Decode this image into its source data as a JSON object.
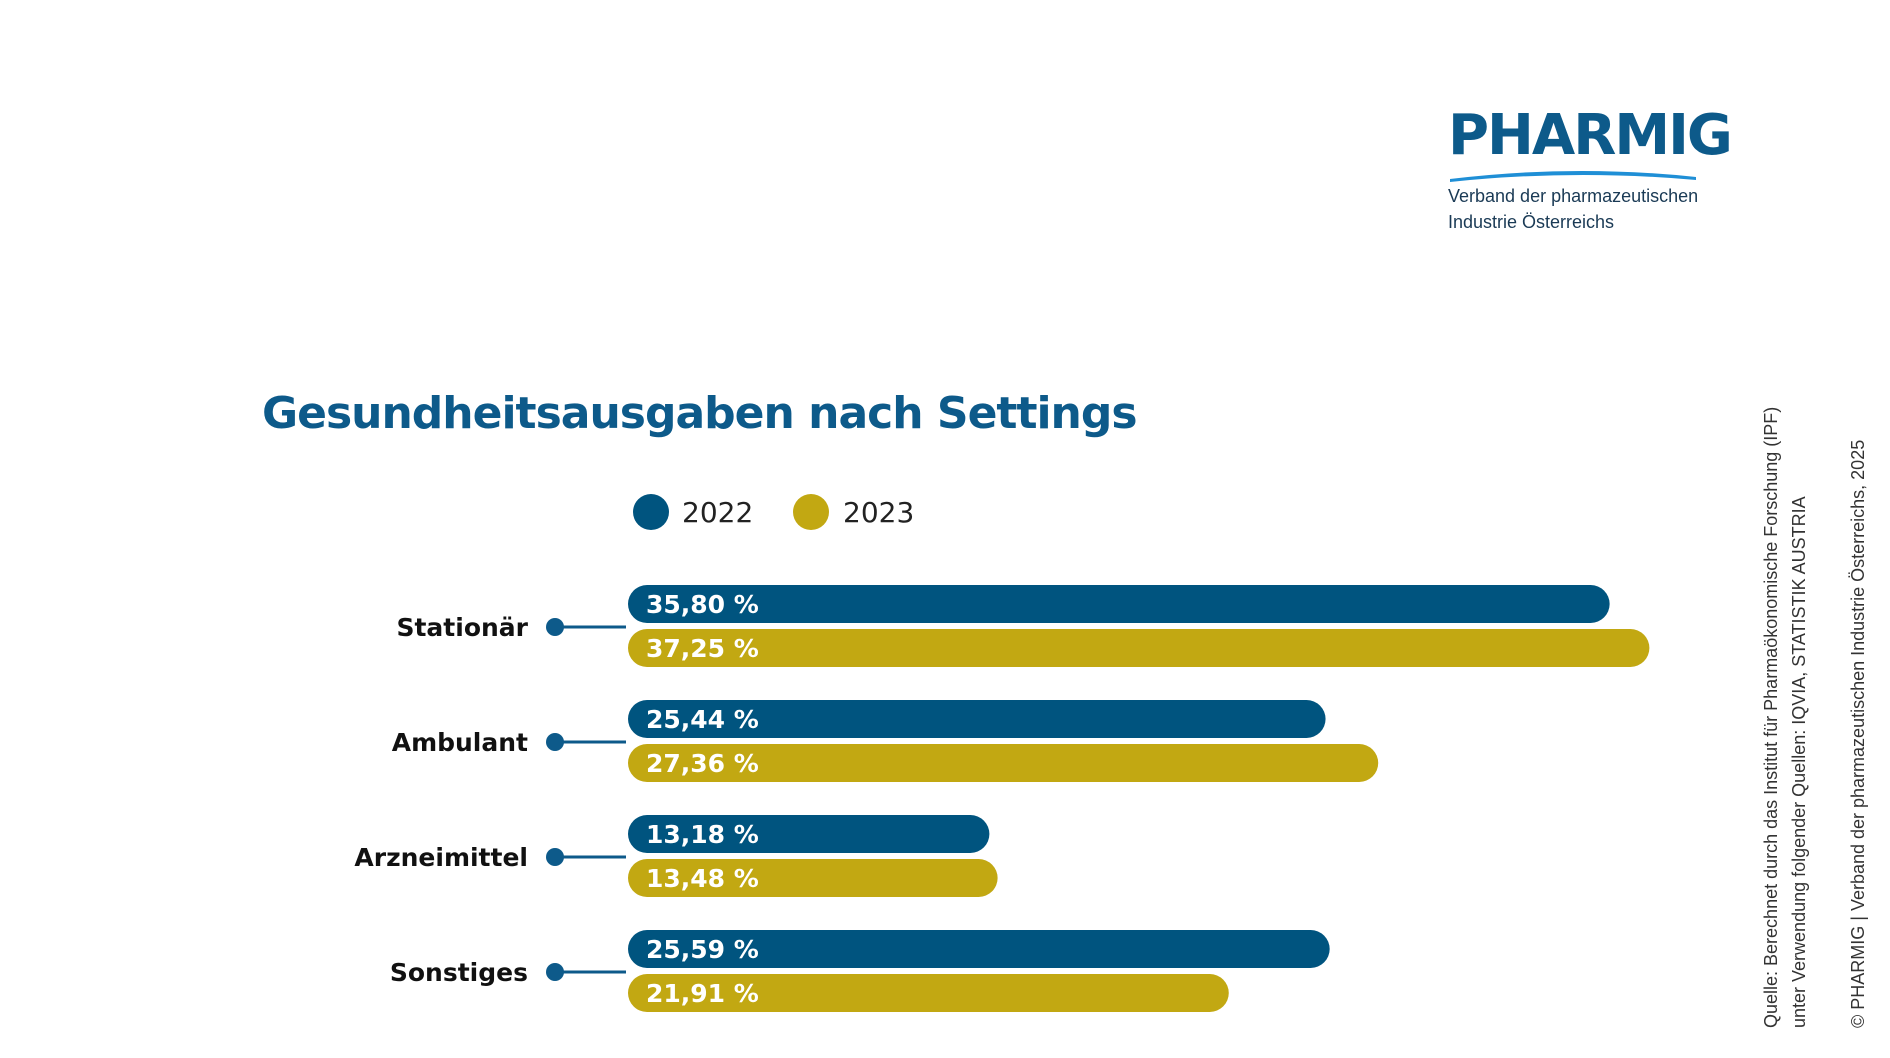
{
  "logo": {
    "brand": "PHARMIG",
    "subtitle_line1": "Verband der pharmazeutischen",
    "subtitle_line2": "Industrie Österreichs"
  },
  "source": {
    "line1": "Quelle: Berechnet durch das Institut für Pharmaökonomische Forschung (IPF)",
    "line2": "unter Verwendung folgender Quellen: IQVIA, STATISTIK AUSTRIA"
  },
  "copyright": "© PHARMIG | Verband der pharmazeutischen Industrie Österreichs, 2025",
  "colors": {
    "series_2022": "#00547f",
    "series_2023": "#c2a812",
    "title": "#0d5a8a",
    "connector": "#0d5a8a"
  },
  "chart_data": {
    "type": "bar",
    "orientation": "horizontal",
    "title": "Gesundheitsausgaben nach Settings",
    "categories": [
      "Stationär",
      "Ambulant",
      "Arzneimittel",
      "Sonstiges"
    ],
    "series": [
      {
        "name": "2022",
        "values": [
          35.8,
          25.44,
          13.18,
          25.59
        ],
        "labels": [
          "35,80 %",
          "25,44  %",
          "13,18 %",
          "25,59 %"
        ]
      },
      {
        "name": "2023",
        "values": [
          37.25,
          27.36,
          13.48,
          21.91
        ],
        "labels": [
          "37,25 %",
          "27,36 %",
          "13,48 %",
          "21,91 %"
        ]
      }
    ],
    "xlim": [
      0,
      40
    ],
    "legend": "top",
    "grid": false
  }
}
